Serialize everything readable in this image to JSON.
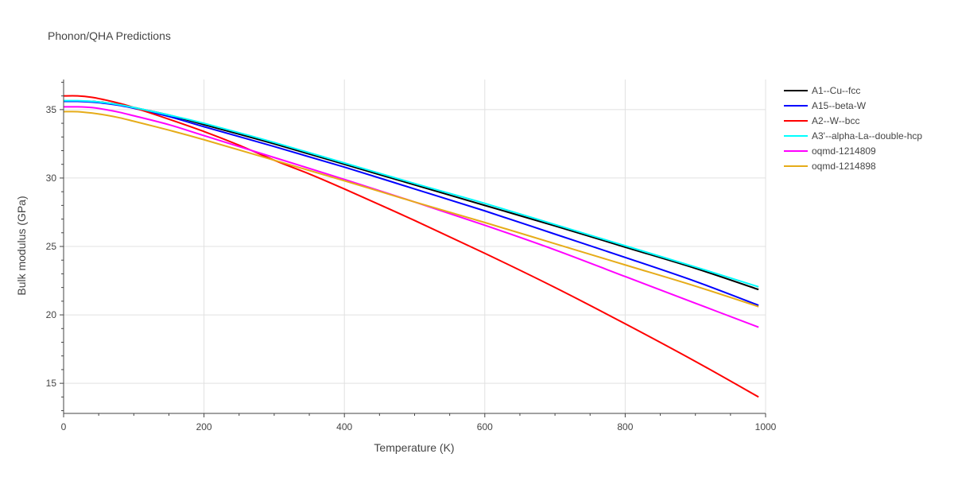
{
  "chart_data": {
    "type": "line",
    "title": "Phonon/QHA Predictions",
    "xlabel": "Temperature (K)",
    "ylabel": "Bulk modulus (GPa)",
    "xlim": [
      0,
      1000
    ],
    "ylim": [
      12.8,
      37.2
    ],
    "xticks": [
      0,
      200,
      400,
      600,
      800,
      1000
    ],
    "yticks": [
      15,
      20,
      25,
      30,
      35
    ],
    "grid": true,
    "legend": "right",
    "series": [
      {
        "name": "A1--Cu--fcc",
        "color": "#000000",
        "x": [
          0,
          20,
          40,
          60,
          80,
          100,
          150,
          200,
          300,
          400,
          500,
          600,
          700,
          800,
          900,
          990
        ],
        "y": [
          35.6,
          35.6,
          35.6,
          35.5,
          35.35,
          35.15,
          34.6,
          33.9,
          32.5,
          31.0,
          29.5,
          28.0,
          26.5,
          24.95,
          23.4,
          21.85
        ]
      },
      {
        "name": "A15--beta-W",
        "color": "#0000ff",
        "x": [
          0,
          20,
          40,
          60,
          80,
          100,
          150,
          200,
          300,
          400,
          500,
          600,
          700,
          800,
          900,
          990
        ],
        "y": [
          35.6,
          35.6,
          35.55,
          35.45,
          35.3,
          35.1,
          34.5,
          33.75,
          32.3,
          30.8,
          29.2,
          27.6,
          25.9,
          24.2,
          22.45,
          20.7
        ]
      },
      {
        "name": "A2--W--bcc",
        "color": "#ff0000",
        "x": [
          0,
          20,
          40,
          60,
          80,
          100,
          150,
          200,
          250,
          300,
          350,
          400,
          500,
          600,
          700,
          800,
          900,
          990
        ],
        "y": [
          36.0,
          36.0,
          35.9,
          35.7,
          35.45,
          35.15,
          34.3,
          33.4,
          32.4,
          31.3,
          30.3,
          29.2,
          26.9,
          24.5,
          22.0,
          19.35,
          16.6,
          14.0
        ]
      },
      {
        "name": "A3'--alpha-La--double-hcp",
        "color": "#00ffff",
        "x": [
          0,
          20,
          40,
          60,
          80,
          100,
          150,
          200,
          300,
          400,
          500,
          600,
          700,
          800,
          900,
          990
        ],
        "y": [
          35.65,
          35.65,
          35.6,
          35.5,
          35.35,
          35.15,
          34.6,
          34.0,
          32.6,
          31.1,
          29.6,
          28.15,
          26.6,
          25.05,
          23.5,
          22.05
        ]
      },
      {
        "name": "oqmd-1214809",
        "color": "#ff00ff",
        "x": [
          0,
          20,
          40,
          60,
          80,
          100,
          150,
          200,
          300,
          400,
          500,
          600,
          700,
          800,
          900,
          990
        ],
        "y": [
          35.2,
          35.2,
          35.15,
          35.0,
          34.8,
          34.55,
          33.9,
          33.1,
          31.5,
          29.9,
          28.25,
          26.55,
          24.75,
          22.8,
          20.85,
          19.1
        ]
      },
      {
        "name": "oqmd-1214898",
        "color": "#e6ac19",
        "x": [
          0,
          20,
          40,
          60,
          80,
          100,
          150,
          200,
          300,
          400,
          500,
          600,
          700,
          800,
          900,
          990
        ],
        "y": [
          34.85,
          34.85,
          34.75,
          34.6,
          34.4,
          34.15,
          33.5,
          32.8,
          31.3,
          29.8,
          28.25,
          26.75,
          25.2,
          23.65,
          22.1,
          20.6
        ]
      }
    ]
  }
}
